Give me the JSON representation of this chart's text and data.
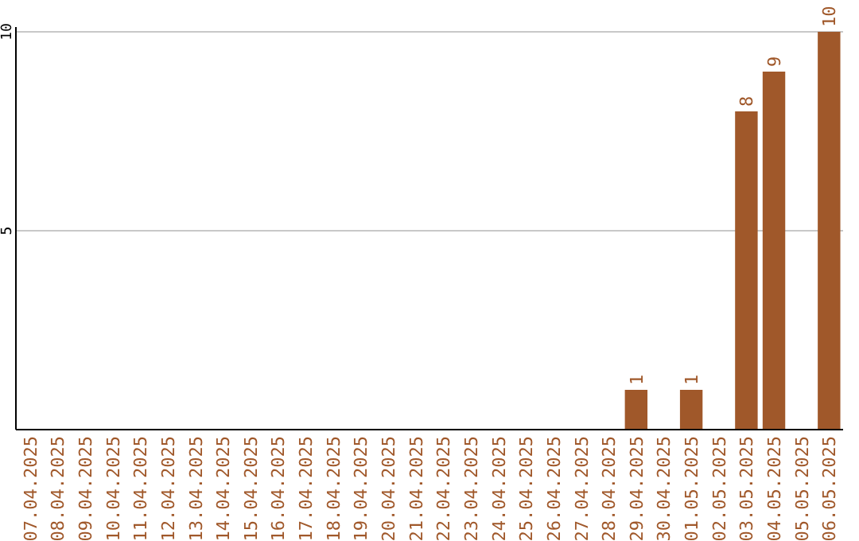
{
  "chart_data": {
    "type": "bar",
    "categories": [
      "07.04.2025",
      "08.04.2025",
      "09.04.2025",
      "10.04.2025",
      "11.04.2025",
      "12.04.2025",
      "13.04.2025",
      "14.04.2025",
      "15.04.2025",
      "16.04.2025",
      "17.04.2025",
      "18.04.2025",
      "19.04.2025",
      "20.04.2025",
      "21.04.2025",
      "22.04.2025",
      "23.04.2025",
      "24.04.2025",
      "25.04.2025",
      "26.04.2025",
      "27.04.2025",
      "28.04.2025",
      "29.04.2025",
      "30.04.2025",
      "01.05.2025",
      "02.05.2025",
      "03.05.2025",
      "04.05.2025",
      "05.05.2025",
      "06.05.2025"
    ],
    "values": [
      0,
      0,
      0,
      0,
      0,
      0,
      0,
      0,
      0,
      0,
      0,
      0,
      0,
      0,
      0,
      0,
      0,
      0,
      0,
      0,
      0,
      0,
      1,
      0,
      1,
      0,
      8,
      9,
      0,
      10
    ],
    "value_labels": [
      null,
      null,
      null,
      null,
      null,
      null,
      null,
      null,
      null,
      null,
      null,
      null,
      null,
      null,
      null,
      null,
      null,
      null,
      null,
      null,
      null,
      null,
      "1",
      null,
      "1",
      null,
      "8",
      "9",
      null,
      "10"
    ],
    "color": "#a0582a",
    "ylim": [
      0,
      10
    ],
    "yticks": [
      5,
      10
    ],
    "grid": "y"
  }
}
